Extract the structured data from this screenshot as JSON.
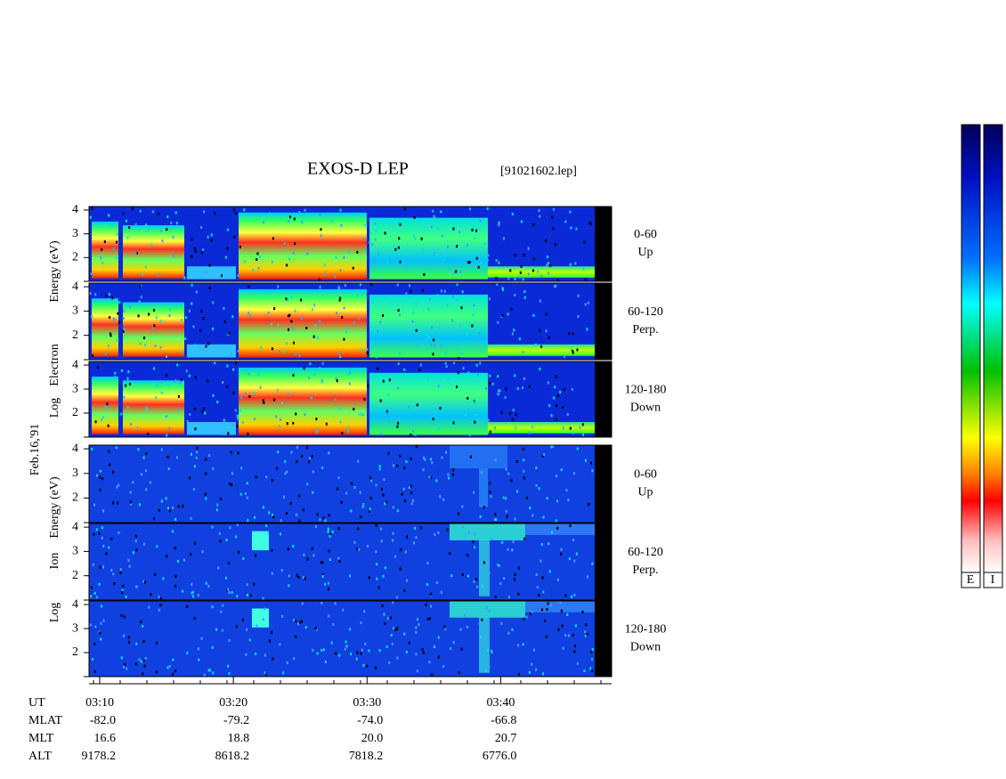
{
  "chart_data": {
    "type": "spectrogram",
    "title": "EXOS-D LEP",
    "file": "[91021602.lep]",
    "date": "Feb.16,'91",
    "electron_ylabel": [
      "Log",
      "Electron",
      "Energy (eV)"
    ],
    "ion_ylabel": [
      "Log",
      "Ion",
      "Energy (eV)"
    ],
    "panels": [
      {
        "species": "electron",
        "range": [
          "0-60",
          "Up"
        ]
      },
      {
        "species": "electron",
        "range": [
          "60-120",
          "Perp."
        ]
      },
      {
        "species": "electron",
        "range": [
          "120-180",
          "Down"
        ]
      },
      {
        "species": "ion",
        "range": [
          "0-60",
          "Up"
        ]
      },
      {
        "species": "ion",
        "range": [
          "60-120",
          "Perp."
        ]
      },
      {
        "species": "ion",
        "range": [
          "120-180",
          "Down"
        ]
      }
    ],
    "ylim": [
      1,
      4.15
    ],
    "yticks": [
      2,
      3,
      4
    ],
    "xlim": [
      9.2,
      48.3
    ],
    "xticks": [
      {
        "value": 10,
        "label": "03:10"
      },
      {
        "value": 20,
        "label": "03:20"
      },
      {
        "value": 30,
        "label": "03:30"
      },
      {
        "value": 40,
        "label": "03:40"
      }
    ],
    "ut_label": "UT",
    "orbit": [
      {
        "label": "MLAT",
        "values": [
          "-82.0",
          "-79.2",
          "-74.0",
          "-66.8"
        ]
      },
      {
        "label": "MLT",
        "values": [
          "16.6",
          "18.8",
          "20.0",
          "20.7"
        ]
      },
      {
        "label": "ALT",
        "values": [
          "9178.2",
          "8618.2",
          "7818.2",
          "6776.0"
        ]
      }
    ],
    "colorbar_labels": [
      "E",
      "I"
    ]
  }
}
